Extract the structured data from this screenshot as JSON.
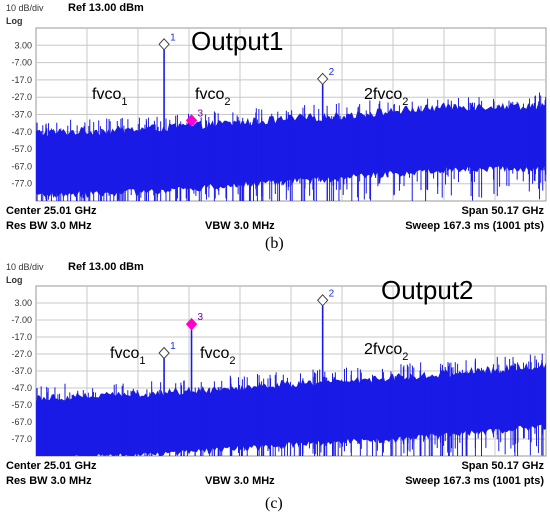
{
  "chart_data": [
    {
      "type": "spectrum",
      "scale_label": "10 dB/div",
      "ref_label": "Ref 13.00 dBm",
      "log_label": "Log",
      "y_ticks": [
        "3.00",
        "-7.00",
        "-17.0",
        "-27.0",
        "-37.0",
        "-47.0",
        "-57.0",
        "-67.0",
        "-77.0"
      ],
      "ylim": [
        -87,
        13
      ],
      "xlim": [
        0,
        50.17
      ],
      "grid": true,
      "title": "Output1",
      "noise_floor": [
        [
          0,
          -54
        ],
        [
          10,
          -52
        ],
        [
          20,
          -48
        ],
        [
          30,
          -44
        ],
        [
          40,
          -39
        ],
        [
          50.17,
          -38
        ]
      ],
      "markers": [
        {
          "num": "1",
          "x": 12.6,
          "y": 3.0,
          "shape": "hollow",
          "color": "#1a2ee8",
          "label": "fvco",
          "sub": "1"
        },
        {
          "num": "3",
          "x": 15.3,
          "y": -41.0,
          "shape": "filled",
          "color": "#ff00cc",
          "label": "fvco",
          "sub": "2"
        },
        {
          "num": "2",
          "x": 28.2,
          "y": -17.0,
          "shape": "hollow",
          "color": "#1a2ee8",
          "label": "2fvco",
          "sub": "2"
        }
      ],
      "footer": {
        "left_top": "Center 25.01 GHz",
        "left_bottom": "Res BW 3.0 MHz",
        "center_bottom": "VBW 3.0 MHz",
        "right_top": "Span 50.17 GHz",
        "right_bottom": "Sweep  167.3 ms (1001 pts)"
      },
      "caption": "(b)"
    },
    {
      "type": "spectrum",
      "scale_label": "10 dB/div",
      "ref_label": "Ref 13.00 dBm",
      "log_label": "Log",
      "y_ticks": [
        "3.00",
        "-7.00",
        "-17.0",
        "-27.0",
        "-37.0",
        "-47.0",
        "-57.0",
        "-67.0",
        "-77.0"
      ],
      "ylim": [
        -87,
        13
      ],
      "xlim": [
        0,
        50.17
      ],
      "grid": true,
      "title": "Output2",
      "noise_floor": [
        [
          0,
          -59
        ],
        [
          10,
          -57
        ],
        [
          20,
          -53
        ],
        [
          30,
          -49
        ],
        [
          40,
          -45
        ],
        [
          50.17,
          -40
        ]
      ],
      "markers": [
        {
          "num": "1",
          "x": 12.6,
          "y": -27.0,
          "shape": "hollow",
          "color": "#1a2ee8",
          "label": "fvco",
          "sub": "1"
        },
        {
          "num": "3",
          "x": 15.3,
          "y": -10.0,
          "shape": "filled",
          "color": "#ff00cc",
          "label": "fvco",
          "sub": "2"
        },
        {
          "num": "2",
          "x": 28.2,
          "y": 4.0,
          "shape": "hollow",
          "color": "#1a2ee8",
          "label": "2fvco",
          "sub": "2"
        }
      ],
      "footer": {
        "left_top": "Center 25.01 GHz",
        "left_bottom": "Res BW 3.0 MHz",
        "center_bottom": "VBW 3.0 MHz",
        "right_top": "Span 50.17 GHz",
        "right_bottom": "Sweep  167.3 ms (1001 pts)"
      },
      "caption": "(c)"
    }
  ]
}
